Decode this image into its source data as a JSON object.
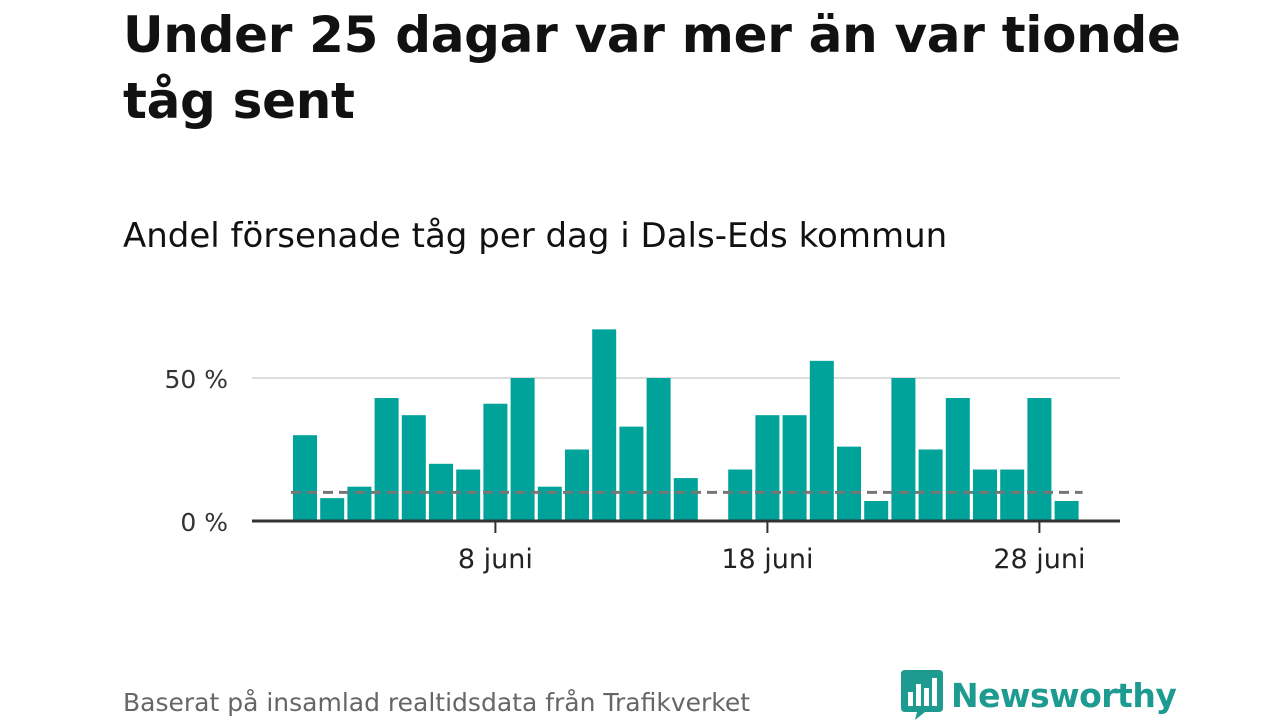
{
  "header": {
    "title": "Under 25 dagar var mer än var tionde tåg sent",
    "subtitle": "Andel försenade tåg per dag i Dals-Eds kommun"
  },
  "footer": {
    "source": "Baserat på insamlad realtidsdata från Trafikverket",
    "brand": "Newsworthy",
    "brand_icon": "bar-chart-speech-bubble-icon"
  },
  "colors": {
    "bars": "#00a39a",
    "threshold": "#777777",
    "grid": "#dddddd",
    "axis": "#333333",
    "brand": "#1d9b90"
  },
  "chart_data": {
    "type": "bar",
    "x": [
      "2024-06-01",
      "2024-06-02",
      "2024-06-03",
      "2024-06-04",
      "2024-06-05",
      "2024-06-06",
      "2024-06-07",
      "2024-06-08",
      "2024-06-09",
      "2024-06-10",
      "2024-06-11",
      "2024-06-12",
      "2024-06-13",
      "2024-06-14",
      "2024-06-15",
      "2024-06-16",
      "2024-06-17",
      "2024-06-18",
      "2024-06-19",
      "2024-06-20",
      "2024-06-21",
      "2024-06-22",
      "2024-06-23",
      "2024-06-24",
      "2024-06-25",
      "2024-06-26",
      "2024-06-27",
      "2024-06-28",
      "2024-06-29"
    ],
    "values": [
      30,
      8,
      12,
      43,
      37,
      20,
      18,
      41,
      50,
      12,
      25,
      67,
      33,
      50,
      15,
      null,
      18,
      37,
      37,
      56,
      26,
      7,
      50,
      25,
      43,
      18,
      18,
      43,
      7
    ],
    "unit": "%",
    "threshold": 10,
    "ylim": [
      0,
      70
    ],
    "yticks": [
      {
        "value": 0,
        "label": "0 %"
      },
      {
        "value": 50,
        "label": "50 %"
      }
    ],
    "xticks": [
      {
        "x": "2024-06-08",
        "label": "8 juni"
      },
      {
        "x": "2024-06-18",
        "label": "18 juni"
      },
      {
        "x": "2024-06-28",
        "label": "28 juni"
      }
    ],
    "grid": true,
    "legend": "none"
  }
}
